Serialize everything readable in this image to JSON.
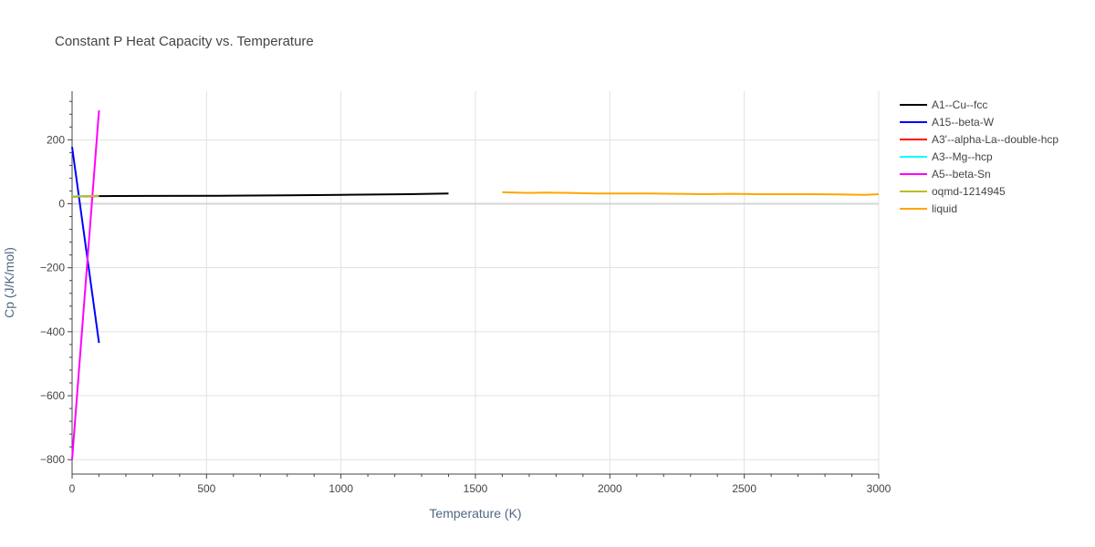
{
  "chart_data": {
    "type": "line",
    "title": "Constant P Heat Capacity vs. Temperature",
    "xlabel": "Temperature (K)",
    "ylabel": "Cp (J/K/mol)",
    "xlim": [
      0,
      3000
    ],
    "ylim": [
      -845,
      352
    ],
    "xticks": [
      0,
      500,
      1000,
      1500,
      2000,
      2500,
      3000
    ],
    "xtick_labels": [
      "0",
      "500",
      "1000",
      "1500",
      "2000",
      "2500",
      "3000"
    ],
    "yticks": [
      200,
      0,
      -200,
      -400,
      -600,
      -800
    ],
    "ytick_labels": [
      "200",
      "0",
      "−200",
      "−400",
      "−600",
      "−800"
    ],
    "grid": true,
    "legend_position": "right",
    "series": [
      {
        "name": "A1--Cu--fcc",
        "color": "#000000",
        "x": [
          100,
          300,
          550,
          800,
          1000,
          1250,
          1400
        ],
        "y": [
          24,
          24.5,
          25,
          26.5,
          28,
          30,
          32
        ]
      },
      {
        "name": "A15--beta-W",
        "color": "#0000ff",
        "x": [
          0,
          100
        ],
        "y": [
          178,
          -435
        ]
      },
      {
        "name": "A3'--alpha-La--double-hcp",
        "color": "#ff0000",
        "x": [
          0,
          100
        ],
        "y": [
          22,
          24
        ]
      },
      {
        "name": "A3--Mg--hcp",
        "color": "#00ffff",
        "x": [
          0,
          100
        ],
        "y": [
          23,
          25
        ]
      },
      {
        "name": "A5--beta-Sn",
        "color": "#ff00ff",
        "x": [
          0,
          100
        ],
        "y": [
          -800,
          292
        ]
      },
      {
        "name": "oqmd-1214945",
        "color": "#bcbd22",
        "x": [
          0,
          100
        ],
        "y": [
          22,
          25
        ]
      },
      {
        "name": "liquid",
        "color": "#ffa500",
        "x": [
          1600,
          1700,
          1760,
          1850,
          1950,
          2050,
          2150,
          2250,
          2350,
          2450,
          2550,
          2650,
          2750,
          2850,
          2950,
          3000
        ],
        "y": [
          36,
          34,
          35,
          34,
          32,
          32,
          32,
          31,
          30,
          31,
          30,
          30,
          30,
          29,
          28,
          30
        ]
      }
    ]
  }
}
